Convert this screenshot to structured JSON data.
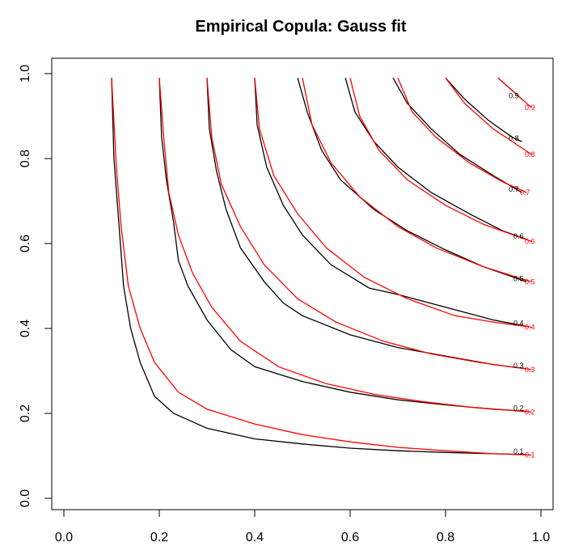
{
  "chart_data": {
    "type": "contour",
    "title": "Empirical Copula: Gauss fit",
    "xlabel": "",
    "ylabel": "",
    "xlim": [
      0.0,
      1.0
    ],
    "ylim": [
      0.0,
      1.0
    ],
    "x_ticks": [
      "0.0",
      "0.2",
      "0.4",
      "0.6",
      "0.8",
      "1.0"
    ],
    "y_ticks": [
      "0.0",
      "0.2",
      "0.4",
      "0.6",
      "0.8",
      "1.0"
    ],
    "grid": false,
    "colors": {
      "empirical": "#000000",
      "fitted": "#ff0000"
    },
    "series": [
      {
        "color": "#000000",
        "contours": [
          {
            "level": "0.1",
            "points": [
              [
                0.1,
                0.99
              ],
              [
                0.105,
                0.8
              ],
              [
                0.115,
                0.65
              ],
              [
                0.125,
                0.5
              ],
              [
                0.14,
                0.4
              ],
              [
                0.16,
                0.32
              ],
              [
                0.19,
                0.24
              ],
              [
                0.23,
                0.2
              ],
              [
                0.3,
                0.165
              ],
              [
                0.4,
                0.14
              ],
              [
                0.5,
                0.128
              ],
              [
                0.6,
                0.118
              ],
              [
                0.7,
                0.112
              ],
              [
                0.8,
                0.108
              ],
              [
                0.9,
                0.105
              ],
              [
                0.97,
                0.103
              ]
            ]
          },
          {
            "level": "0.2",
            "points": [
              [
                0.2,
                0.99
              ],
              [
                0.205,
                0.85
              ],
              [
                0.215,
                0.75
              ],
              [
                0.23,
                0.65
              ],
              [
                0.24,
                0.56
              ],
              [
                0.26,
                0.5
              ],
              [
                0.3,
                0.42
              ],
              [
                0.35,
                0.35
              ],
              [
                0.4,
                0.31
              ],
              [
                0.5,
                0.275
              ],
              [
                0.6,
                0.25
              ],
              [
                0.7,
                0.232
              ],
              [
                0.8,
                0.22
              ],
              [
                0.9,
                0.21
              ],
              [
                0.97,
                0.205
              ]
            ]
          },
          {
            "level": "0.3",
            "points": [
              [
                0.3,
                0.99
              ],
              [
                0.305,
                0.87
              ],
              [
                0.32,
                0.77
              ],
              [
                0.34,
                0.68
              ],
              [
                0.37,
                0.59
              ],
              [
                0.42,
                0.51
              ],
              [
                0.46,
                0.46
              ],
              [
                0.5,
                0.43
              ],
              [
                0.6,
                0.385
              ],
              [
                0.7,
                0.355
              ],
              [
                0.8,
                0.335
              ],
              [
                0.9,
                0.315
              ],
              [
                0.97,
                0.305
              ]
            ]
          },
          {
            "level": "0.4",
            "points": [
              [
                0.4,
                0.99
              ],
              [
                0.405,
                0.88
              ],
              [
                0.425,
                0.78
              ],
              [
                0.46,
                0.69
              ],
              [
                0.5,
                0.62
              ],
              [
                0.56,
                0.55
              ],
              [
                0.64,
                0.495
              ],
              [
                0.7,
                0.48
              ],
              [
                0.8,
                0.45
              ],
              [
                0.9,
                0.42
              ],
              [
                0.97,
                0.405
              ]
            ]
          },
          {
            "level": "0.5",
            "points": [
              [
                0.49,
                0.99
              ],
              [
                0.51,
                0.91
              ],
              [
                0.54,
                0.82
              ],
              [
                0.58,
                0.75
              ],
              [
                0.65,
                0.68
              ],
              [
                0.72,
                0.63
              ],
              [
                0.8,
                0.585
              ],
              [
                0.88,
                0.545
              ],
              [
                0.97,
                0.51
              ]
            ]
          },
          {
            "level": "0.6",
            "points": [
              [
                0.59,
                0.99
              ],
              [
                0.61,
                0.91
              ],
              [
                0.65,
                0.84
              ],
              [
                0.7,
                0.78
              ],
              [
                0.77,
                0.72
              ],
              [
                0.85,
                0.67
              ],
              [
                0.92,
                0.63
              ],
              [
                0.97,
                0.61
              ]
            ]
          },
          {
            "level": "0.7",
            "points": [
              [
                0.69,
                0.99
              ],
              [
                0.72,
                0.93
              ],
              [
                0.77,
                0.87
              ],
              [
                0.83,
                0.81
              ],
              [
                0.9,
                0.76
              ],
              [
                0.96,
                0.72
              ]
            ]
          },
          {
            "level": "0.8",
            "points": [
              [
                0.8,
                0.99
              ],
              [
                0.84,
                0.94
              ],
              [
                0.89,
                0.89
              ],
              [
                0.94,
                0.85
              ],
              [
                0.96,
                0.84
              ]
            ]
          },
          {
            "level": "0.9",
            "points": [
              [
                0.91,
                0.99
              ],
              [
                0.94,
                0.96
              ],
              [
                0.96,
                0.94
              ]
            ]
          }
        ]
      },
      {
        "color": "#ff0000",
        "contours": [
          {
            "level": "0.1",
            "points": [
              [
                0.1,
                0.99
              ],
              [
                0.11,
                0.78
              ],
              [
                0.12,
                0.64
              ],
              [
                0.135,
                0.5
              ],
              [
                0.16,
                0.4
              ],
              [
                0.19,
                0.32
              ],
              [
                0.24,
                0.25
              ],
              [
                0.3,
                0.21
              ],
              [
                0.4,
                0.175
              ],
              [
                0.5,
                0.15
              ],
              [
                0.6,
                0.133
              ],
              [
                0.7,
                0.12
              ],
              [
                0.8,
                0.112
              ],
              [
                0.9,
                0.105
              ],
              [
                0.98,
                0.102
              ]
            ]
          },
          {
            "level": "0.2",
            "points": [
              [
                0.2,
                0.99
              ],
              [
                0.21,
                0.84
              ],
              [
                0.22,
                0.72
              ],
              [
                0.24,
                0.62
              ],
              [
                0.27,
                0.53
              ],
              [
                0.31,
                0.45
              ],
              [
                0.37,
                0.37
              ],
              [
                0.45,
                0.31
              ],
              [
                0.55,
                0.27
              ],
              [
                0.65,
                0.245
              ],
              [
                0.75,
                0.228
              ],
              [
                0.85,
                0.215
              ],
              [
                0.98,
                0.203
              ]
            ]
          },
          {
            "level": "0.3",
            "points": [
              [
                0.3,
                0.99
              ],
              [
                0.31,
                0.85
              ],
              [
                0.33,
                0.74
              ],
              [
                0.37,
                0.64
              ],
              [
                0.42,
                0.55
              ],
              [
                0.49,
                0.47
              ],
              [
                0.57,
                0.415
              ],
              [
                0.67,
                0.37
              ],
              [
                0.77,
                0.34
              ],
              [
                0.87,
                0.32
              ],
              [
                0.98,
                0.303
              ]
            ]
          },
          {
            "level": "0.4",
            "points": [
              [
                0.4,
                0.99
              ],
              [
                0.41,
                0.87
              ],
              [
                0.44,
                0.76
              ],
              [
                0.49,
                0.67
              ],
              [
                0.55,
                0.59
              ],
              [
                0.63,
                0.52
              ],
              [
                0.72,
                0.47
              ],
              [
                0.82,
                0.43
              ],
              [
                0.9,
                0.415
              ],
              [
                0.98,
                0.403
              ]
            ]
          },
          {
            "level": "0.5",
            "points": [
              [
                0.5,
                0.99
              ],
              [
                0.52,
                0.88
              ],
              [
                0.56,
                0.79
              ],
              [
                0.62,
                0.71
              ],
              [
                0.7,
                0.64
              ],
              [
                0.78,
                0.59
              ],
              [
                0.88,
                0.545
              ],
              [
                0.98,
                0.51
              ]
            ]
          },
          {
            "level": "0.6",
            "points": [
              [
                0.6,
                0.99
              ],
              [
                0.62,
                0.9
              ],
              [
                0.66,
                0.82
              ],
              [
                0.72,
                0.75
              ],
              [
                0.8,
                0.69
              ],
              [
                0.88,
                0.645
              ],
              [
                0.98,
                0.605
              ]
            ]
          },
          {
            "level": "0.7",
            "points": [
              [
                0.7,
                0.99
              ],
              [
                0.73,
                0.91
              ],
              [
                0.78,
                0.85
              ],
              [
                0.85,
                0.79
              ],
              [
                0.92,
                0.745
              ],
              [
                0.97,
                0.72
              ]
            ]
          },
          {
            "level": "0.8",
            "points": [
              [
                0.8,
                0.99
              ],
              [
                0.84,
                0.93
              ],
              [
                0.9,
                0.87
              ],
              [
                0.98,
                0.81
              ]
            ]
          },
          {
            "level": "0.9",
            "points": [
              [
                0.91,
                0.99
              ],
              [
                0.95,
                0.95
              ],
              [
                0.98,
                0.92
              ]
            ]
          }
        ]
      }
    ]
  }
}
